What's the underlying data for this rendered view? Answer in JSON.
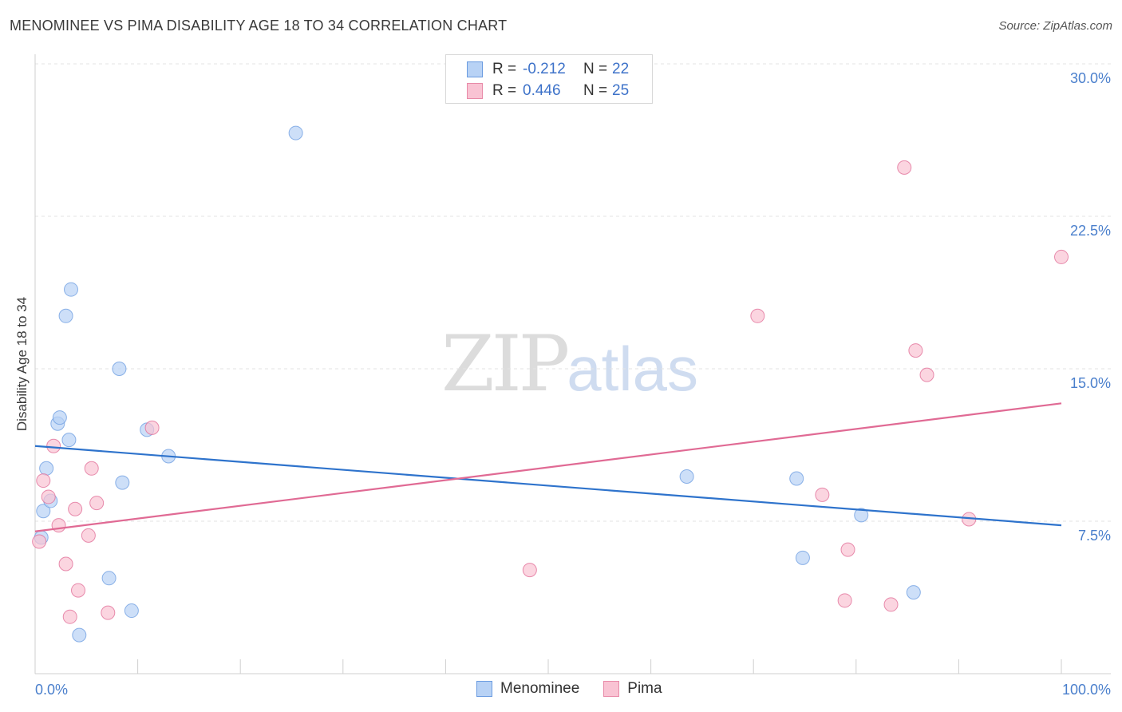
{
  "header": {
    "title": "MENOMINEE VS PIMA DISABILITY AGE 18 TO 34 CORRELATION CHART",
    "source": "Source: ZipAtlas.com"
  },
  "watermark": {
    "zip": "ZIP",
    "atlas": "atlas"
  },
  "legend": {
    "r_label": "R =",
    "n_label": "N =",
    "rows": [
      {
        "name": "Menominee",
        "r": "-0.212",
        "n": "22",
        "fill": "#b8d2f5",
        "stroke": "#6a9be0"
      },
      {
        "name": "Pima",
        "r": "0.446",
        "n": "25",
        "fill": "#f9c3d3",
        "stroke": "#e88aa8"
      }
    ]
  },
  "chart_data": {
    "type": "scatter",
    "title": "MENOMINEE VS PIMA DISABILITY AGE 18 TO 34 CORRELATION CHART",
    "xlabel": "",
    "ylabel": "Disability Age 18 to 34",
    "xlim": [
      0,
      100
    ],
    "ylim": [
      0,
      30
    ],
    "x_tick_labels": [
      "0.0%",
      "100.0%"
    ],
    "y_ticks": [
      7.5,
      15.0,
      22.5,
      30.0
    ],
    "y_tick_labels": [
      "7.5%",
      "15.0%",
      "22.5%",
      "30.0%"
    ],
    "grid": true,
    "legend_position": "top-center",
    "series": [
      {
        "name": "Menominee",
        "color": "#6a9be0",
        "fill": "#b8d2f5",
        "trend": [
          [
            0,
            11.2
          ],
          [
            100,
            7.3
          ]
        ],
        "points": [
          [
            0.6,
            6.7
          ],
          [
            0.8,
            8.0
          ],
          [
            1.1,
            10.1
          ],
          [
            1.5,
            8.5
          ],
          [
            2.2,
            12.3
          ],
          [
            2.4,
            12.6
          ],
          [
            3.0,
            17.6
          ],
          [
            3.3,
            11.5
          ],
          [
            3.5,
            18.9
          ],
          [
            4.3,
            1.9
          ],
          [
            7.2,
            4.7
          ],
          [
            8.2,
            15.0
          ],
          [
            8.5,
            9.4
          ],
          [
            9.4,
            3.1
          ],
          [
            10.9,
            12.0
          ],
          [
            13.0,
            10.7
          ],
          [
            25.4,
            26.6
          ],
          [
            63.5,
            9.7
          ],
          [
            74.2,
            9.6
          ],
          [
            74.8,
            5.7
          ],
          [
            80.5,
            7.8
          ],
          [
            85.6,
            4.0
          ]
        ]
      },
      {
        "name": "Pima",
        "color": "#e06a94",
        "fill": "#f9c3d3",
        "trend": [
          [
            0,
            7.0
          ],
          [
            100,
            13.3
          ]
        ],
        "points": [
          [
            0.4,
            6.5
          ],
          [
            0.8,
            9.5
          ],
          [
            1.3,
            8.7
          ],
          [
            1.8,
            11.2
          ],
          [
            2.3,
            7.3
          ],
          [
            3.0,
            5.4
          ],
          [
            3.4,
            2.8
          ],
          [
            3.9,
            8.1
          ],
          [
            4.2,
            4.1
          ],
          [
            5.2,
            6.8
          ],
          [
            5.5,
            10.1
          ],
          [
            6.0,
            8.4
          ],
          [
            7.1,
            3.0
          ],
          [
            11.4,
            12.1
          ],
          [
            48.2,
            5.1
          ],
          [
            70.4,
            17.6
          ],
          [
            76.7,
            8.8
          ],
          [
            78.9,
            3.6
          ],
          [
            79.2,
            6.1
          ],
          [
            83.4,
            3.4
          ],
          [
            84.7,
            24.9
          ],
          [
            85.8,
            15.9
          ],
          [
            86.9,
            14.7
          ],
          [
            91.0,
            7.6
          ],
          [
            100.0,
            20.5
          ]
        ]
      }
    ]
  }
}
